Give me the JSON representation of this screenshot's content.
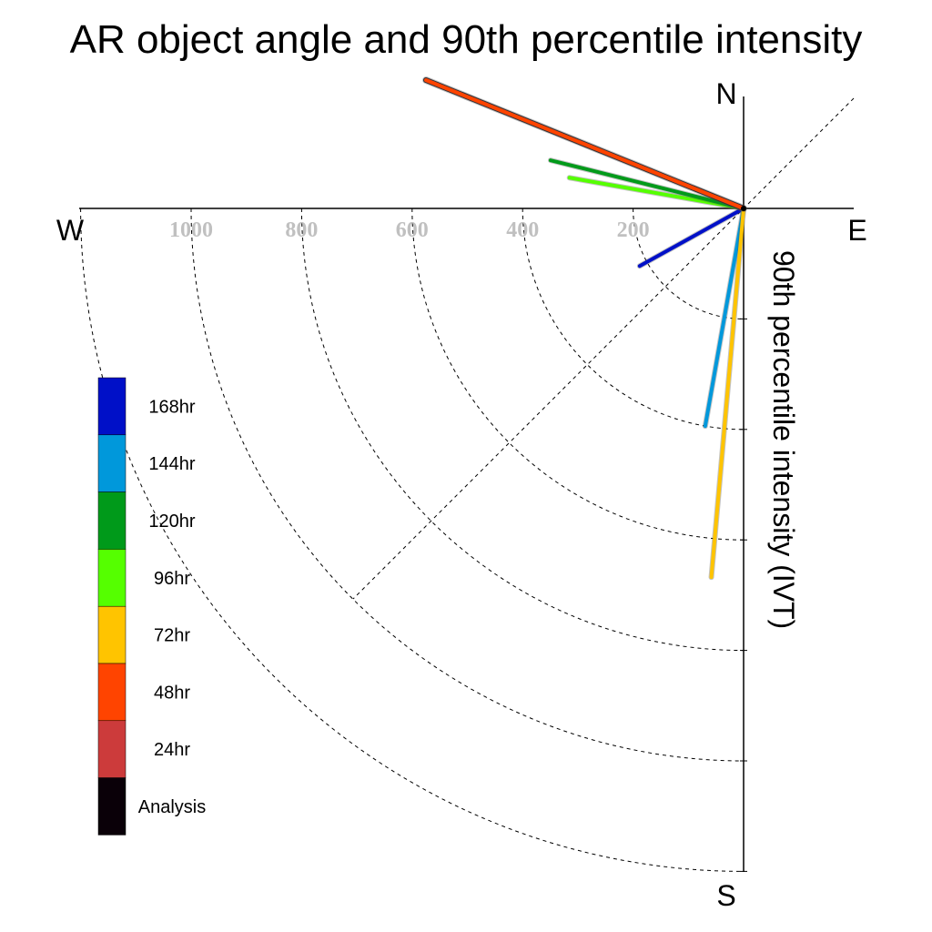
{
  "chart_data": {
    "type": "polar-vector",
    "title": "AR object angle and 90th percentile intensity",
    "ylabel": "90th percentile intensity (IVT)",
    "compass": {
      "north": "N",
      "south": "S",
      "east": "E",
      "west": "W"
    },
    "radial_ticks": [
      {
        "value": 200,
        "label": "200"
      },
      {
        "value": 400,
        "label": "400"
      },
      {
        "value": 600,
        "label": "600"
      },
      {
        "value": 800,
        "label": "800"
      },
      {
        "value": 1000,
        "label": "1000"
      }
    ],
    "radial_max": 1000,
    "series": [
      {
        "name": "Analysis",
        "color": "#0a0008",
        "angle_deg": 292,
        "intensity": 620
      },
      {
        "name": "24hr",
        "color": "#cc3b3b",
        "angle_deg": 292,
        "intensity": 620
      },
      {
        "name": "48hr",
        "color": "#ff4400",
        "angle_deg": 292,
        "intensity": 620
      },
      {
        "name": "72hr",
        "color": "#ffc400",
        "angle_deg": 185,
        "intensity": 670
      },
      {
        "name": "96hr",
        "color": "#55ff00",
        "angle_deg": 280,
        "intensity": 320
      },
      {
        "name": "120hr",
        "color": "#009a1a",
        "angle_deg": 284,
        "intensity": 360
      },
      {
        "name": "144hr",
        "color": "#0098db",
        "angle_deg": 190,
        "intensity": 400
      },
      {
        "name": "168hr",
        "color": "#0010c8",
        "angle_deg": 241,
        "intensity": 215
      }
    ],
    "legend": [
      "168hr",
      "144hr",
      "120hr",
      "96hr",
      "72hr",
      "48hr",
      "24hr",
      "Analysis"
    ]
  }
}
